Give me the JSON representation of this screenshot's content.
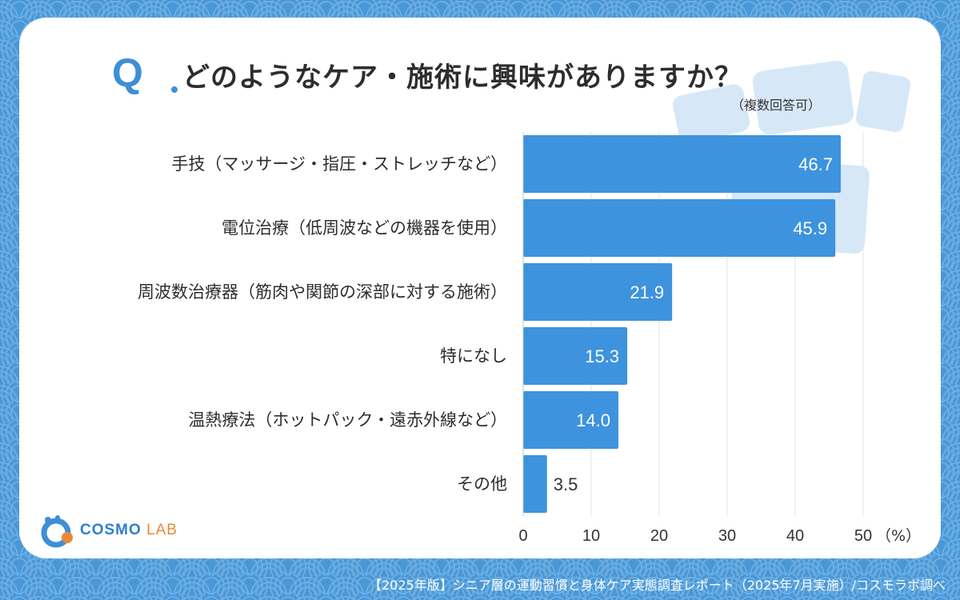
{
  "header": {
    "q_mark": "Q",
    "title": "どのようなケア・施術に興味がありますか？",
    "note": "（複数回答可）"
  },
  "chart_data": {
    "type": "bar",
    "orientation": "horizontal",
    "categories": [
      "手技（マッサージ・指圧・ストレッチなど）",
      "電位治療（低周波などの機器を使用）",
      "周波数治療器（筋肉や関節の深部に対する施術）",
      "特になし",
      "温熱療法（ホットパック・遠赤外線など）",
      "その他"
    ],
    "values": [
      46.7,
      45.9,
      21.9,
      15.3,
      14.0,
      3.5
    ],
    "value_labels": [
      "46.7",
      "45.9",
      "21.9",
      "15.3",
      "14.0",
      "3.5"
    ],
    "x_ticks": [
      "0",
      "10",
      "20",
      "30",
      "40",
      "50"
    ],
    "x_unit": "（%）",
    "xlim": [
      0,
      50
    ],
    "grid": true,
    "bar_color": "#3d93de"
  },
  "logo": {
    "main": "COSMO",
    "accent": "LAB"
  },
  "footer": {
    "text": "【2025年版】シニア層の運動習慣と身体ケア実態調査レポート（2025年7月実施）/コスモラボ調べ"
  },
  "colors": {
    "background": "#4a97d6",
    "card": "#ffffff",
    "accent": "#3d8fd6",
    "logo_orange": "#e8893a"
  }
}
